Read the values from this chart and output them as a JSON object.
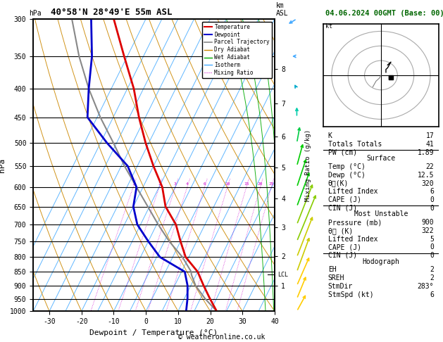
{
  "title_left": "40°58'N 28°49'E 55m ASL",
  "title_right": "04.06.2024 00GMT (Base: 00)",
  "xlabel": "Dewpoint / Temperature (°C)",
  "ylabel_left": "hPa",
  "copyright": "© weatheronline.co.uk",
  "x_min": -35,
  "x_max": 40,
  "pressure_levels": [
    300,
    350,
    400,
    450,
    500,
    550,
    600,
    650,
    700,
    750,
    800,
    850,
    900,
    950,
    1000
  ],
  "lcl_pressure": 860,
  "temp_profile_p": [
    1000,
    950,
    900,
    850,
    800,
    750,
    700,
    650,
    600,
    550,
    500,
    450,
    400,
    350,
    300
  ],
  "temp_profile_t": [
    22,
    18,
    14,
    10,
    4,
    0,
    -4,
    -10,
    -14,
    -20,
    -26,
    -32,
    -38,
    -46,
    -55
  ],
  "dewp_profile_p": [
    1000,
    950,
    900,
    850,
    800,
    750,
    700,
    650,
    600,
    550,
    500,
    450,
    400,
    350,
    300
  ],
  "dewp_profile_t": [
    12.5,
    11,
    9,
    6,
    -4,
    -10,
    -16,
    -20,
    -22,
    -28,
    -38,
    -48,
    -52,
    -56,
    -62
  ],
  "parcel_profile_p": [
    1000,
    950,
    900,
    860,
    850,
    800,
    750,
    700,
    650,
    600,
    550,
    500,
    450,
    400,
    350,
    300
  ],
  "parcel_profile_t": [
    22,
    16.5,
    11.5,
    8.5,
    8.0,
    3.0,
    -3.5,
    -9.5,
    -15.5,
    -22,
    -29,
    -36,
    -44,
    -52,
    -60,
    -68
  ],
  "skew_factor": 45,
  "dry_adiabat_color": "#cc8800",
  "wet_adiabat_color": "#00aa00",
  "isotherm_color": "#44aaff",
  "mixing_ratio_color": "#cc00cc",
  "temp_color": "#dd0000",
  "dewp_color": "#0000cc",
  "parcel_color": "#888888",
  "mixing_ratio_values": [
    1,
    2,
    3,
    4,
    6,
    10,
    15,
    20,
    25
  ],
  "km_p_approx": {
    "1": 899,
    "2": 796,
    "3": 707,
    "4": 628,
    "5": 554,
    "6": 487,
    "7": 425,
    "8": 369
  },
  "wind_levels_p": [
    1000,
    950,
    900,
    850,
    800,
    750,
    700,
    650,
    600,
    550,
    500,
    450,
    400,
    350,
    300
  ],
  "wind_u": [
    3,
    3,
    4,
    4,
    5,
    6,
    5,
    4,
    3,
    2,
    1,
    0,
    -1,
    -2,
    -3
  ],
  "wind_v": [
    3,
    4,
    5,
    6,
    7,
    8,
    7,
    6,
    5,
    4,
    3,
    2,
    1,
    0,
    -1
  ],
  "wind_colors": [
    "#ffcc00",
    "#ffcc00",
    "#ffcc00",
    "#cccc00",
    "#cccc00",
    "#88cc00",
    "#88cc00",
    "#00cc00",
    "#00cc00",
    "#00cc00",
    "#00cc44",
    "#00ccaa",
    "#00aacc",
    "#44aaff",
    "#44aaff"
  ],
  "indices_K": 17,
  "indices_TT": 41,
  "indices_PW": 1.89,
  "surf_temp": 22,
  "surf_dewp": 12.5,
  "surf_thetae": 320,
  "surf_li": 6,
  "surf_cape": 0,
  "surf_cin": 0,
  "mu_pres": 900,
  "mu_thetae": 322,
  "mu_li": 5,
  "mu_cape": 0,
  "mu_cin": 0,
  "hodo_eh": 2,
  "hodo_sreh": 2,
  "hodo_stmdir": "283°",
  "hodo_stmspd": 6
}
